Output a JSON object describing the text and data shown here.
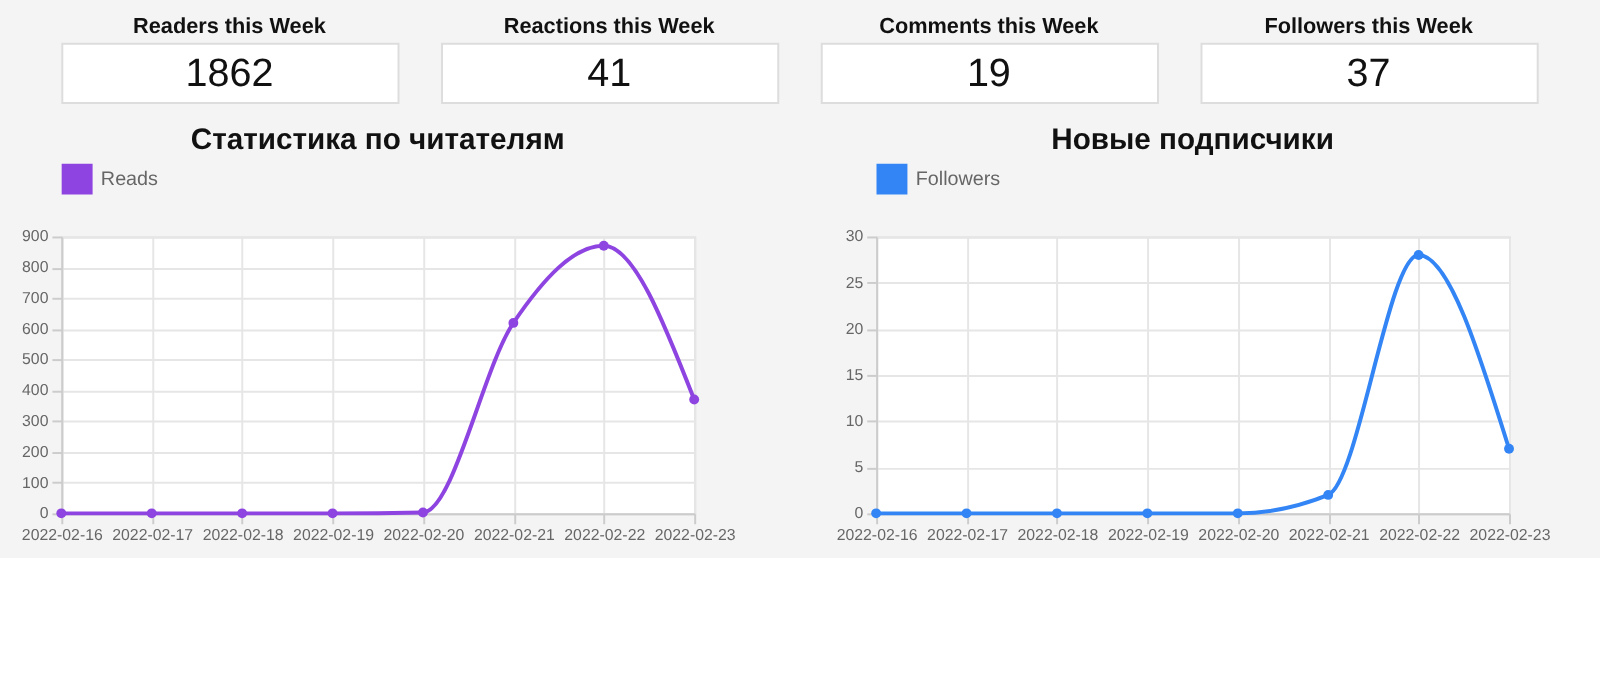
{
  "chart_data": [
    {
      "type": "other",
      "title": "Readers this Week",
      "annotations": [
        "1862"
      ]
    },
    {
      "type": "other",
      "title": "Reactions this Week",
      "annotations": [
        "41"
      ]
    },
    {
      "type": "other",
      "title": "Comments this Week",
      "annotations": [
        "19"
      ]
    },
    {
      "type": "other",
      "title": "Followers this Week",
      "annotations": [
        "37"
      ]
    },
    {
      "type": "line",
      "title": "Статистика по читателям",
      "categories": [
        "2022-02-16",
        "2022-02-17",
        "2022-02-18",
        "2022-02-19",
        "2022-02-20",
        "2022-02-21",
        "2022-02-22",
        "2022-02-23"
      ],
      "series": [
        {
          "name": "Reads",
          "color": "#8e44e0",
          "values": [
            0,
            0,
            0,
            0,
            3,
            619,
            870,
            370
          ]
        }
      ],
      "ylim": [
        0,
        900
      ],
      "yticks": [
        0,
        100,
        200,
        300,
        400,
        500,
        600,
        700,
        800,
        900
      ],
      "grid": true,
      "legend": "top",
      "marker": "circle",
      "line_style": "solid"
    },
    {
      "type": "line",
      "title": "Новые подписчики",
      "categories": [
        "2022-02-16",
        "2022-02-17",
        "2022-02-18",
        "2022-02-19",
        "2022-02-20",
        "2022-02-21",
        "2022-02-22",
        "2022-02-23"
      ],
      "series": [
        {
          "name": "Followers",
          "color": "#3385f5",
          "values": [
            0,
            0,
            0,
            0,
            0,
            2,
            28,
            7
          ]
        }
      ],
      "ylim": [
        0,
        30
      ],
      "yticks": [
        0,
        5,
        10,
        15,
        20,
        25,
        30
      ],
      "grid": true,
      "legend": "top",
      "marker": "circle",
      "line_style": "solid"
    }
  ]
}
